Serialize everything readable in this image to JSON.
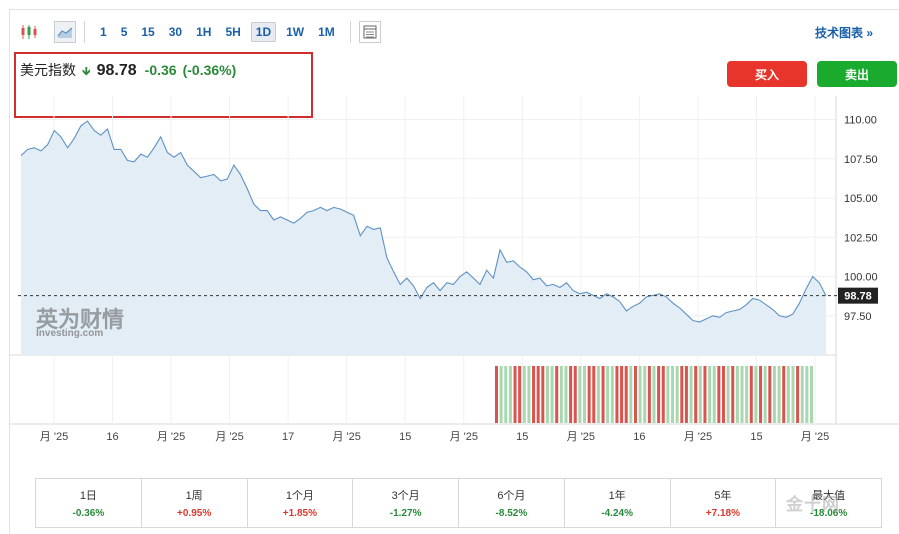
{
  "toolbar": {
    "periods": [
      "1",
      "5",
      "15",
      "30",
      "1H",
      "5H",
      "1D",
      "1W",
      "1M"
    ],
    "active_period": "1D",
    "right_link": "技术图表 »"
  },
  "quote": {
    "name": "美元指数",
    "price": "98.78",
    "change": "-0.36",
    "change_pct": "(-0.36%)"
  },
  "buttons": {
    "buy": "买入",
    "sell": "卖出"
  },
  "watermark": {
    "cn": "英为财情",
    "en": "Investing.com"
  },
  "corner_watermark": "金十网",
  "colors": {
    "line": "#5d91c4",
    "area": "#e3edf6",
    "up_volume": "#d9534f",
    "down_volume": "#a9d8b0",
    "negative": "#2a8a3a",
    "positive": "#d8392f"
  },
  "chart_data": {
    "type": "area",
    "ylim": [
      95.0,
      111.5
    ],
    "y_ticks": [
      "110.00",
      "107.50",
      "105.00",
      "102.50",
      "100.00",
      "97.50"
    ],
    "last_value": "98.78",
    "x_tick_labels": [
      "月 '25",
      "16",
      "月 '25",
      "月 '25",
      "17",
      "月 '25",
      "15",
      "月 '25",
      "15",
      "月 '25",
      "16",
      "月 '25",
      "15",
      "月 '25"
    ],
    "values": [
      107.7,
      108.1,
      108.2,
      108.0,
      108.4,
      109.3,
      108.9,
      108.2,
      108.8,
      109.6,
      109.9,
      109.3,
      109.0,
      109.4,
      108.1,
      108.1,
      107.4,
      107.3,
      107.8,
      107.6,
      108.2,
      108.9,
      107.9,
      107.6,
      107.9,
      107.1,
      106.7,
      106.3,
      106.4,
      106.5,
      106.1,
      106.2,
      107.1,
      106.5,
      105.6,
      104.6,
      104.2,
      104.2,
      103.6,
      103.8,
      103.6,
      103.4,
      103.7,
      104.1,
      104.2,
      104.4,
      104.2,
      104.4,
      104.3,
      104.1,
      103.9,
      102.6,
      103.2,
      103.0,
      103.1,
      101.2,
      100.3,
      99.5,
      99.9,
      99.4,
      98.6,
      99.3,
      99.6,
      99.1,
      99.6,
      99.5,
      100.0,
      100.3,
      99.9,
      99.5,
      100.4,
      99.9,
      101.7,
      100.9,
      101.0,
      100.6,
      100.3,
      99.8,
      99.9,
      99.4,
      99.5,
      99.3,
      99.6,
      99.1,
      98.9,
      99.0,
      98.8,
      98.6,
      98.9,
      98.7,
      98.4,
      97.8,
      98.1,
      98.3,
      98.7,
      98.8,
      98.9,
      98.7,
      98.3,
      98.0,
      97.6,
      97.2,
      97.1,
      97.3,
      97.5,
      97.4,
      97.7,
      97.8,
      97.9,
      98.2,
      98.6,
      98.5,
      98.2,
      97.9,
      97.5,
      97.4,
      97.6,
      98.3,
      99.2,
      100.0,
      99.6,
      98.78
    ],
    "volume_pattern": [
      1,
      0,
      0,
      0,
      1,
      1,
      0,
      0,
      1,
      1,
      1,
      0,
      0,
      1,
      0,
      0,
      1,
      1,
      0,
      0,
      1,
      1,
      0,
      1,
      0,
      0,
      1,
      1,
      1,
      0,
      1,
      0,
      0,
      1,
      0,
      1,
      1,
      0,
      0,
      0,
      1,
      1,
      0,
      1,
      0,
      1,
      0,
      0,
      1,
      1,
      0,
      1,
      0,
      0,
      0,
      1,
      0,
      1,
      0,
      1,
      0,
      0,
      1,
      0,
      0,
      1,
      0,
      0,
      0
    ],
    "grid": true
  },
  "performance": [
    {
      "label": "1日",
      "value": "-0.36%",
      "sign": "neg"
    },
    {
      "label": "1周",
      "value": "+0.95%",
      "sign": "pos"
    },
    {
      "label": "1个月",
      "value": "+1.85%",
      "sign": "pos"
    },
    {
      "label": "3个月",
      "value": "-1.27%",
      "sign": "neg"
    },
    {
      "label": "6个月",
      "value": "-8.52%",
      "sign": "neg"
    },
    {
      "label": "1年",
      "value": "-4.24%",
      "sign": "neg"
    },
    {
      "label": "5年",
      "value": "+7.18%",
      "sign": "pos"
    },
    {
      "label": "最大值",
      "value": "-18.06%",
      "sign": "neg"
    }
  ]
}
